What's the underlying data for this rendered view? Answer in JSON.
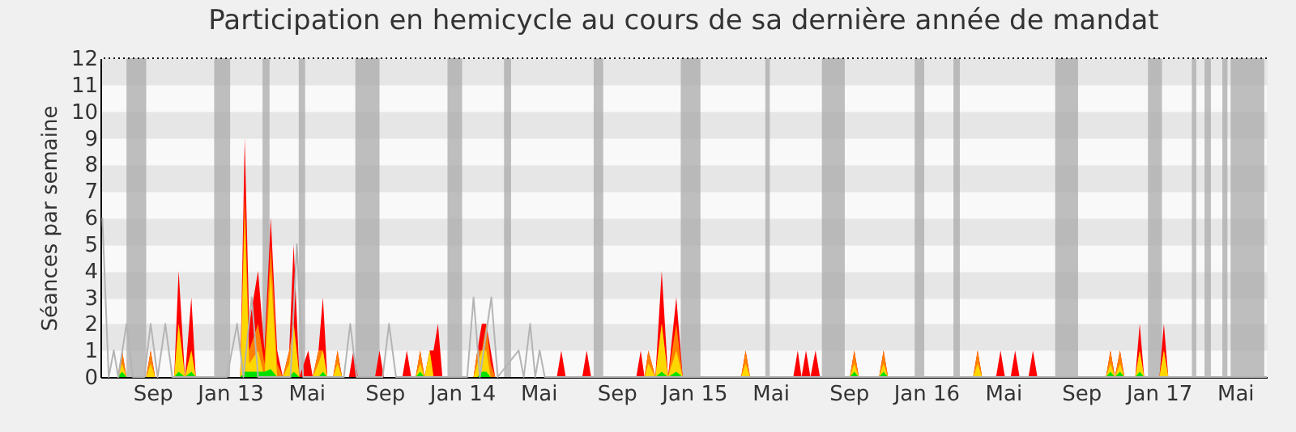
{
  "chart_data": {
    "type": "area",
    "title": "Participation en hemicycle au cours de sa dernière année de mandat",
    "ylabel": "Séances par semaine",
    "x": [
      "2012-06-25",
      "2012-07-22",
      "2012-07-29",
      "2012-08-05",
      "2012-09-05",
      "2012-09-12",
      "2012-09-19",
      "2012-10-19",
      "2012-10-26",
      "2012-11-05",
      "2012-11-15",
      "2012-11-22",
      "2013-01-31",
      "2013-02-07",
      "2013-02-14",
      "2013-02-28",
      "2013-03-10",
      "2013-03-20",
      "2013-03-30",
      "2013-04-08",
      "2013-04-18",
      "2013-04-25",
      "2013-05-04",
      "2013-05-18",
      "2013-05-25",
      "2013-06-03",
      "2013-06-10",
      "2013-06-17",
      "2013-06-26",
      "2013-07-03",
      "2013-07-10",
      "2013-07-21",
      "2013-07-28",
      "2013-08-04",
      "2013-08-31",
      "2013-09-07",
      "2013-09-14",
      "2013-10-13",
      "2013-10-20",
      "2013-10-27",
      "2013-11-03",
      "2013-11-10",
      "2013-11-17",
      "2013-11-25",
      "2013-12-01",
      "2013-12-08",
      "2013-12-15",
      "2014-02-02",
      "2014-02-08",
      "2014-02-15",
      "2014-02-22",
      "2014-03-01",
      "2014-03-08",
      "2014-06-13",
      "2014-06-20",
      "2014-06-27",
      "2014-07-23",
      "2014-07-30",
      "2014-08-06",
      "2014-10-16",
      "2014-10-23",
      "2014-10-29",
      "2014-11-04",
      "2014-11-15",
      "2014-11-25",
      "2014-12-05",
      "2014-12-18",
      "2014-12-28",
      "2015-03-30",
      "2015-04-06",
      "2015-04-13",
      "2015-06-20",
      "2015-06-27",
      "2015-07-03",
      "2015-07-10",
      "2015-07-17",
      "2015-07-25",
      "2015-08-01",
      "2015-09-17",
      "2015-09-24",
      "2015-10-01",
      "2015-11-02",
      "2015-11-09",
      "2015-11-16",
      "2016-03-29",
      "2016-04-05",
      "2016-04-12",
      "2016-05-04",
      "2016-05-11",
      "2016-05-18",
      "2016-05-27",
      "2016-06-03",
      "2016-06-10",
      "2016-06-24",
      "2016-07-01",
      "2016-07-08",
      "2016-10-24",
      "2016-10-31",
      "2016-11-07",
      "2016-11-15",
      "2016-11-22",
      "2016-12-09",
      "2016-12-16",
      "2016-12-23",
      "2017-01-16",
      "2017-01-23",
      "2017-01-30",
      "2017-07-04"
    ],
    "series": [
      {
        "type": "area",
        "color": "#ff0000",
        "values": [
          0,
          0,
          1,
          0,
          0,
          1,
          0,
          0,
          4,
          0,
          3,
          0,
          0,
          9,
          2,
          4,
          1,
          6,
          1,
          0,
          1,
          5,
          0,
          1,
          0,
          1,
          3,
          0,
          0,
          1,
          0,
          0,
          1,
          0,
          0,
          1,
          0,
          0,
          1,
          0,
          0,
          1,
          0,
          1,
          1,
          2,
          0,
          0,
          1,
          2,
          2,
          1,
          0,
          0,
          1,
          0,
          0,
          1,
          0,
          0,
          1,
          0,
          1,
          0,
          4,
          0,
          3,
          0,
          0,
          1,
          0,
          0,
          1,
          0,
          1,
          0,
          1,
          0,
          0,
          1,
          0,
          0,
          1,
          0,
          0,
          1,
          0,
          0,
          1,
          0,
          0,
          1,
          0,
          0,
          1,
          0,
          0,
          1,
          0,
          1,
          0,
          0,
          2,
          0,
          0,
          2,
          0,
          0
        ]
      },
      {
        "type": "area",
        "color": "#ff8000",
        "values": [
          0,
          0,
          1,
          0,
          0,
          1,
          0,
          0,
          2,
          0,
          1,
          0,
          0,
          7,
          1,
          2,
          0.5,
          5,
          0.5,
          0,
          1,
          2,
          0,
          0,
          0,
          1,
          1,
          0,
          0,
          1,
          0,
          0,
          0,
          0,
          0,
          0,
          0,
          0,
          0,
          0,
          0,
          1,
          0,
          1,
          0,
          0,
          0,
          0,
          1,
          1,
          2,
          0.5,
          0,
          0,
          0,
          0,
          0,
          0,
          0,
          0,
          0,
          0,
          1,
          0,
          2,
          0,
          2,
          0,
          0,
          1,
          0,
          0,
          0,
          0,
          0,
          0,
          0,
          0,
          0,
          1,
          0,
          0,
          1,
          0,
          0,
          1,
          0,
          0,
          0,
          0,
          0,
          0,
          0,
          0,
          0,
          0,
          0,
          1,
          0,
          1,
          0,
          0,
          1,
          0,
          0,
          1,
          0,
          0
        ]
      },
      {
        "type": "area",
        "color": "#ffd700",
        "values": [
          0,
          0,
          0.5,
          0,
          0,
          0.5,
          0,
          0,
          2,
          0,
          1,
          0,
          0,
          6,
          0.5,
          1,
          0,
          4,
          0,
          0,
          0.5,
          2,
          0,
          0,
          0,
          0.5,
          1,
          0,
          0,
          0.5,
          0,
          0,
          0,
          0,
          0,
          0,
          0,
          0,
          0,
          0,
          0,
          0.5,
          0,
          1,
          0,
          0,
          0,
          0,
          0.5,
          1,
          1,
          0,
          0,
          0,
          0,
          0,
          0,
          0,
          0,
          0,
          0,
          0,
          0.5,
          0,
          2,
          0,
          1,
          0,
          0,
          0.5,
          0,
          0,
          0,
          0,
          0,
          0,
          0,
          0,
          0,
          0.5,
          0,
          0,
          0.5,
          0,
          0,
          0.5,
          0,
          0,
          0,
          0,
          0,
          0,
          0,
          0,
          0,
          0,
          0,
          0.5,
          0,
          0.5,
          0,
          0,
          1,
          0,
          0,
          1,
          0,
          0
        ]
      },
      {
        "type": "area",
        "color": "#00e000",
        "values": [
          0,
          0,
          0.2,
          0,
          0,
          0,
          0,
          0,
          0.2,
          0,
          0.2,
          0,
          0,
          0.2,
          0.2,
          0.2,
          0.2,
          0.3,
          0,
          0,
          0,
          0.2,
          0,
          0,
          0,
          0,
          0.2,
          0,
          0,
          0,
          0,
          0,
          0,
          0,
          0,
          0,
          0,
          0,
          0,
          0,
          0,
          0.2,
          0,
          0,
          0,
          0,
          0,
          0,
          0,
          0.2,
          0.2,
          0,
          0,
          0,
          0,
          0,
          0,
          0,
          0,
          0,
          0,
          0,
          0,
          0,
          0.2,
          0,
          0.2,
          0,
          0,
          0,
          0,
          0,
          0,
          0,
          0,
          0,
          0,
          0,
          0,
          0.2,
          0,
          0,
          0.2,
          0,
          0,
          0,
          0,
          0,
          0,
          0,
          0,
          0,
          0,
          0,
          0,
          0,
          0,
          0.2,
          0,
          0.2,
          0,
          0,
          0.2,
          0,
          0,
          0,
          0,
          0
        ]
      },
      {
        "type": "line",
        "color": "#b4b4b4",
        "x": [
          "2012-06-28",
          "2012-07-08",
          "2012-07-16",
          "2012-07-23",
          "2012-08-05",
          "2012-08-15",
          "2012-09-02",
          "2012-09-12",
          "2012-09-23",
          "2012-10-05",
          "2012-10-16",
          "2013-01-10",
          "2013-01-26",
          "2013-02-05",
          "2013-02-18",
          "2013-02-28",
          "2013-04-20",
          "2013-04-30",
          "2013-05-10",
          "2013-07-13",
          "2013-07-23",
          "2013-08-02",
          "2013-09-12",
          "2013-09-22",
          "2013-10-03",
          "2014-01-23",
          "2014-02-02",
          "2014-02-12",
          "2014-03-02",
          "2014-03-12",
          "2014-04-14",
          "2014-04-22",
          "2014-05-02",
          "2014-05-10",
          "2014-05-17",
          "2014-05-25",
          "2017-07-04"
        ],
        "values": [
          6,
          0,
          1,
          0,
          2,
          0,
          0,
          2,
          0,
          2,
          0,
          0,
          2,
          0,
          3,
          0,
          0,
          5,
          0,
          0,
          2,
          0,
          0,
          2,
          0,
          0,
          3,
          0,
          3,
          0,
          1,
          0,
          2,
          0,
          1,
          0,
          0
        ]
      }
    ],
    "xlim": [
      "2012-06-25",
      "2017-07-04"
    ],
    "xticks": [
      {
        "value": "2012-09-15",
        "label": "Sep"
      },
      {
        "value": "2013-01-15",
        "label": "Jan 13"
      },
      {
        "value": "2013-05-15",
        "label": "Mai"
      },
      {
        "value": "2013-09-15",
        "label": "Sep"
      },
      {
        "value": "2014-01-15",
        "label": "Jan 14"
      },
      {
        "value": "2014-05-15",
        "label": "Mai"
      },
      {
        "value": "2014-09-15",
        "label": "Sep"
      },
      {
        "value": "2015-01-15",
        "label": "Jan 15"
      },
      {
        "value": "2015-05-15",
        "label": "Mai"
      },
      {
        "value": "2015-09-15",
        "label": "Sep"
      },
      {
        "value": "2016-01-15",
        "label": "Jan 16"
      },
      {
        "value": "2016-05-15",
        "label": "Mai"
      },
      {
        "value": "2016-09-15",
        "label": "Sep"
      },
      {
        "value": "2017-01-15",
        "label": "Jan 17"
      },
      {
        "value": "2017-05-15",
        "label": "Mai"
      }
    ],
    "ylim": [
      0,
      12
    ],
    "yticks": [
      0,
      1,
      2,
      3,
      4,
      5,
      6,
      7,
      8,
      9,
      10,
      11,
      12
    ],
    "grid": "y",
    "ref_lines": [
      {
        "axis": "y",
        "value": 12,
        "color": "#000000",
        "line_style": "dotted"
      }
    ],
    "bands": [
      {
        "axis": "x",
        "from": "2012-08-05",
        "to": "2012-09-05",
        "color": "#aaaaaa"
      },
      {
        "axis": "x",
        "from": "2012-12-21",
        "to": "2013-01-15",
        "color": "#aaaaaa"
      },
      {
        "axis": "x",
        "from": "2013-03-07",
        "to": "2013-03-18",
        "color": "#aaaaaa"
      },
      {
        "axis": "x",
        "from": "2013-05-03",
        "to": "2013-05-13",
        "color": "#aaaaaa"
      },
      {
        "axis": "x",
        "from": "2013-07-31",
        "to": "2013-09-07",
        "color": "#aaaaaa"
      },
      {
        "axis": "x",
        "from": "2013-12-23",
        "to": "2014-01-15",
        "color": "#aaaaaa"
      },
      {
        "axis": "x",
        "from": "2014-03-22",
        "to": "2014-04-02",
        "color": "#aaaaaa"
      },
      {
        "axis": "x",
        "from": "2014-08-10",
        "to": "2014-08-25",
        "color": "#aaaaaa"
      },
      {
        "axis": "x",
        "from": "2014-12-25",
        "to": "2015-01-25",
        "color": "#aaaaaa"
      },
      {
        "axis": "x",
        "from": "2015-05-07",
        "to": "2015-05-14",
        "color": "#aaaaaa"
      },
      {
        "axis": "x",
        "from": "2015-08-04",
        "to": "2015-09-09",
        "color": "#aaaaaa"
      },
      {
        "axis": "x",
        "from": "2015-12-28",
        "to": "2016-01-12",
        "color": "#aaaaaa"
      },
      {
        "axis": "x",
        "from": "2016-02-27",
        "to": "2016-03-08",
        "color": "#aaaaaa"
      },
      {
        "axis": "x",
        "from": "2016-08-05",
        "to": "2016-09-10",
        "color": "#aaaaaa"
      },
      {
        "axis": "x",
        "from": "2016-12-29",
        "to": "2017-01-20",
        "color": "#aaaaaa"
      },
      {
        "axis": "x",
        "from": "2017-03-08",
        "to": "2017-03-15",
        "color": "#aaaaaa"
      },
      {
        "axis": "x",
        "from": "2017-03-28",
        "to": "2017-04-07",
        "color": "#aaaaaa"
      },
      {
        "axis": "x",
        "from": "2017-04-25",
        "to": "2017-05-03",
        "color": "#aaaaaa"
      },
      {
        "axis": "x",
        "from": "2017-05-08",
        "to": "2017-06-30",
        "color": "#aaaaaa"
      }
    ]
  }
}
